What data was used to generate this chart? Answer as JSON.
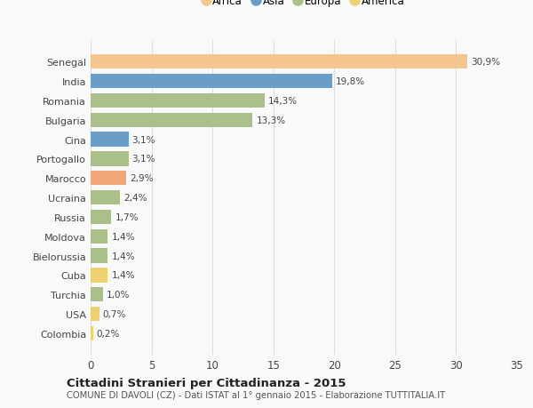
{
  "categories": [
    "Senegal",
    "India",
    "Romania",
    "Bulgaria",
    "Cina",
    "Portogallo",
    "Marocco",
    "Ucraina",
    "Russia",
    "Moldova",
    "Bielorussia",
    "Cuba",
    "Turchia",
    "USA",
    "Colombia"
  ],
  "values": [
    30.9,
    19.8,
    14.3,
    13.3,
    3.1,
    3.1,
    2.9,
    2.4,
    1.7,
    1.4,
    1.4,
    1.4,
    1.0,
    0.7,
    0.2
  ],
  "labels": [
    "30,9%",
    "19,8%",
    "14,3%",
    "13,3%",
    "3,1%",
    "3,1%",
    "2,9%",
    "2,4%",
    "1,7%",
    "1,4%",
    "1,4%",
    "1,4%",
    "1,0%",
    "0,7%",
    "0,2%"
  ],
  "show_label": [
    true,
    true,
    true,
    true,
    true,
    true,
    true,
    true,
    true,
    true,
    true,
    true,
    true,
    true,
    true
  ],
  "colors": [
    "#F5C590",
    "#6B9EC6",
    "#ABBF8A",
    "#ABBF8A",
    "#6B9EC6",
    "#ABBF8A",
    "#F0A878",
    "#ABBF8A",
    "#ABBF8A",
    "#ABBF8A",
    "#ABBF8A",
    "#EDD070",
    "#ABBF8A",
    "#EDD070",
    "#EDD070"
  ],
  "legend": [
    {
      "label": "Africa",
      "color": "#F5C590"
    },
    {
      "label": "Asia",
      "color": "#6B9EC6"
    },
    {
      "label": "Europa",
      "color": "#ABBF8A"
    },
    {
      "label": "America",
      "color": "#EDD070"
    }
  ],
  "xlim": [
    0,
    35
  ],
  "xticks": [
    0,
    5,
    10,
    15,
    20,
    25,
    30,
    35
  ],
  "title": "Cittadini Stranieri per Cittadinanza - 2015",
  "subtitle": "COMUNE DI DAVOLI (CZ) - Dati ISTAT al 1° gennaio 2015 - Elaborazione TUTTITALIA.IT",
  "bg_color": "#f9f9f9",
  "grid_color": "#dddddd",
  "bar_height": 0.75
}
